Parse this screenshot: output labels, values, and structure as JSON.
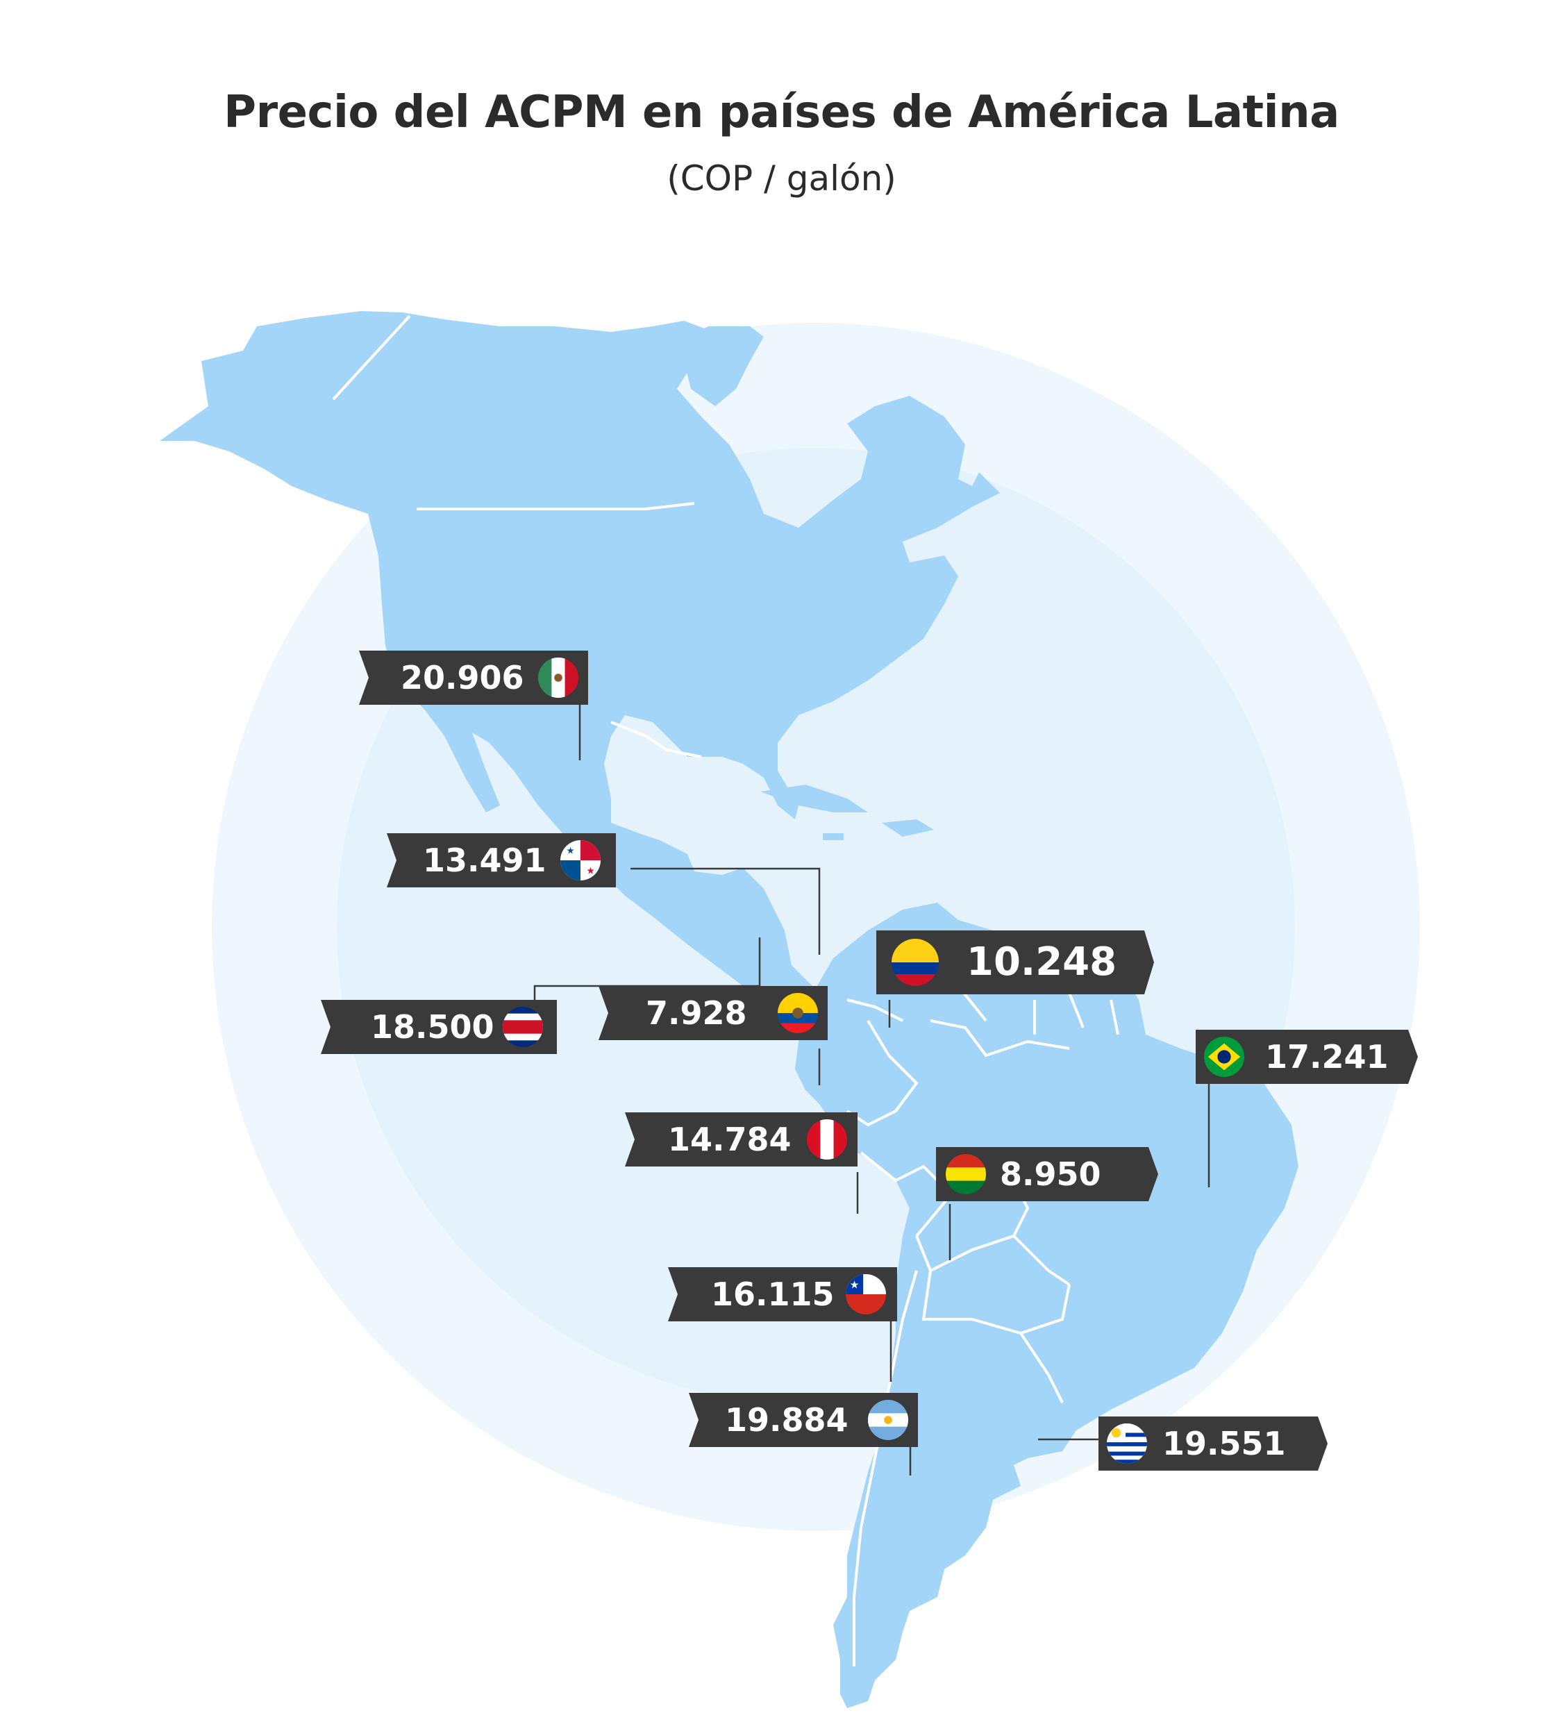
{
  "title": "Precio del ACPM en países de América Latina",
  "subtitle": "(COP / galón)",
  "colors": {
    "land": "#a2d5f8",
    "ocean_circle": "#eef7fd",
    "ocean_inner": "#e4f2fc",
    "label_bg": "#3a3a3a",
    "label_text": "#ffffff",
    "leader": "#3a3a3a"
  },
  "countries": [
    {
      "id": "mexico",
      "value": "20.906",
      "flag": "mexico-flag-icon"
    },
    {
      "id": "panama",
      "value": "13.491",
      "flag": "panama-flag-icon"
    },
    {
      "id": "costa_rica",
      "value": "18.500",
      "flag": "costa-rica-flag-icon"
    },
    {
      "id": "ecuador",
      "value": "7.928",
      "flag": "ecuador-flag-icon"
    },
    {
      "id": "colombia",
      "value": "10.248",
      "flag": "colombia-flag-icon"
    },
    {
      "id": "brazil",
      "value": "17.241",
      "flag": "brazil-flag-icon"
    },
    {
      "id": "peru",
      "value": "14.784",
      "flag": "peru-flag-icon"
    },
    {
      "id": "bolivia",
      "value": "8.950",
      "flag": "bolivia-flag-icon"
    },
    {
      "id": "chile",
      "value": "16.115",
      "flag": "chile-flag-icon"
    },
    {
      "id": "argentina",
      "value": "19.884",
      "flag": "argentina-flag-icon"
    },
    {
      "id": "uruguay",
      "value": "19.551",
      "flag": "uruguay-flag-icon"
    }
  ]
}
